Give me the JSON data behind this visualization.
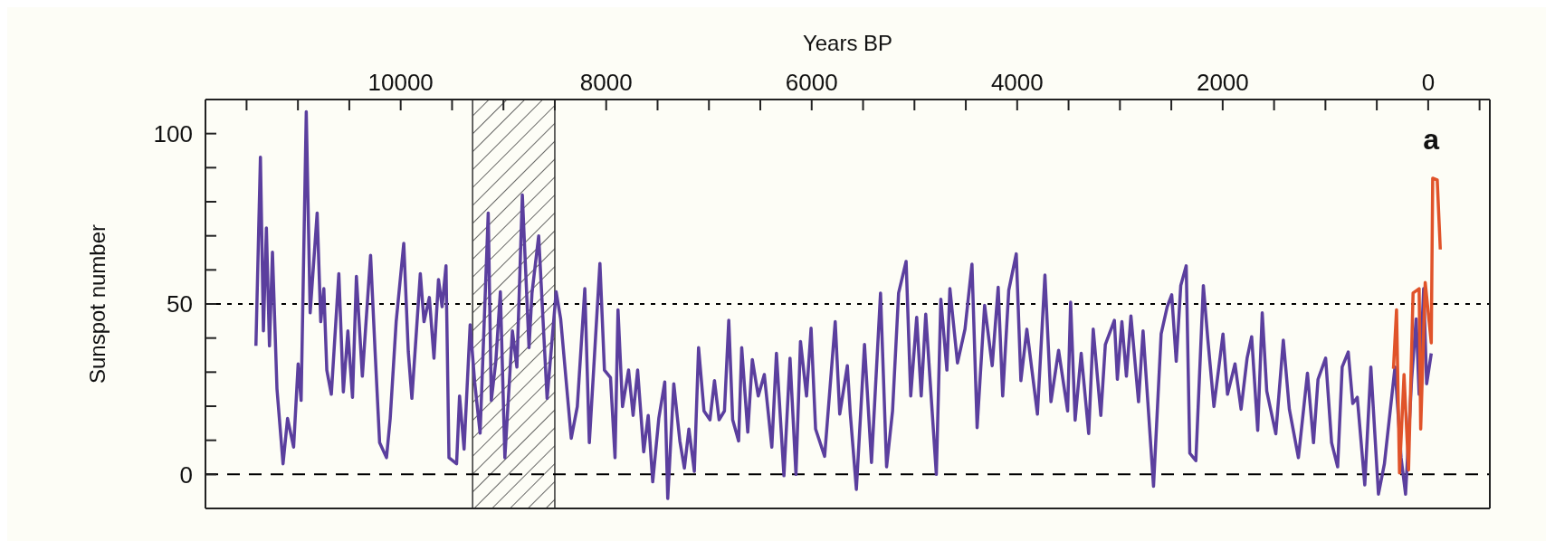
{
  "chart_data": {
    "type": "line",
    "xlabel": "Years BP",
    "ylabel": "Sunspot number",
    "annotations": [
      "a"
    ],
    "xlim": [
      11900,
      -600
    ],
    "ylim": [
      -10,
      110
    ],
    "xticks": [
      {
        "value": 11500,
        "label": null
      },
      {
        "value": 11000,
        "label": null
      },
      {
        "value": 10500,
        "label": null
      },
      10000,
      {
        "value": 9500,
        "label": null
      },
      {
        "value": 9000,
        "label": null
      },
      {
        "value": 8500,
        "label": null
      },
      8000,
      {
        "value": 7500,
        "label": null
      },
      {
        "value": 7000,
        "label": null
      },
      {
        "value": 6500,
        "label": null
      },
      6000,
      {
        "value": 5500,
        "label": null
      },
      {
        "value": 5000,
        "label": null
      },
      {
        "value": 4500,
        "label": null
      },
      4000,
      {
        "value": 3500,
        "label": null
      },
      {
        "value": 3000,
        "label": null
      },
      {
        "value": 2500,
        "label": null
      },
      2000,
      {
        "value": 1500,
        "label": null
      },
      {
        "value": 1000,
        "label": null
      },
      {
        "value": 500,
        "label": null
      },
      0,
      {
        "value": -500,
        "label": null
      }
    ],
    "yticks": [
      0,
      {
        "value": 10,
        "label": null
      },
      {
        "value": 20,
        "label": null
      },
      {
        "value": 30,
        "label": null
      },
      {
        "value": 40,
        "label": null
      },
      50,
      {
        "value": 60,
        "label": null
      },
      {
        "value": 70,
        "label": null
      },
      {
        "value": 80,
        "label": null
      },
      {
        "value": 90,
        "label": null
      },
      100
    ],
    "ref_lines": [
      {
        "axis": "y",
        "value": 50,
        "line_style": "dotted",
        "color": "#000000"
      },
      {
        "axis": "y",
        "value": 0,
        "line_style": "dashed",
        "color": "#000000"
      }
    ],
    "bands": [
      {
        "axis": "x",
        "from": 9300,
        "to": 8500,
        "color": "#333333"
      }
    ],
    "series": [
      {
        "color": "#5b3f9e",
        "x": [
          11409,
          11365,
          11336,
          11307,
          11277,
          11248,
          11204,
          11145,
          11101,
          11042,
          10998,
          10969,
          10919,
          10881,
          10813,
          10778,
          10748,
          10719,
          10675,
          10602,
          10558,
          10514,
          10469,
          10431,
          10373,
          10293,
          10249,
          10205,
          10138,
          10102,
          10044,
          9970,
          9926,
          9891,
          9809,
          9773,
          9721,
          9676,
          9632,
          9597,
          9559,
          9530,
          9456,
          9427,
          9383,
          9324,
          9280,
          9227,
          9148,
          9118,
          9074,
          9030,
          8986,
          8913,
          8869,
          8816,
          8751,
          8722,
          8657,
          8575,
          8487,
          8443,
          8340,
          8281,
          8208,
          8164,
          8061,
          8017,
          7958,
          7914,
          7885,
          7841,
          7782,
          7738,
          7694,
          7635,
          7591,
          7547,
          7488,
          7430,
          7401,
          7342,
          7283,
          7239,
          7195,
          7142,
          7101,
          7048,
          6990,
          6946,
          6901,
          6849,
          6807,
          6769,
          6711,
          6681,
          6622,
          6578,
          6520,
          6461,
          6388,
          6343,
          6270,
          6211,
          6153,
          6109,
          6050,
          6006,
          5962,
          5874,
          5771,
          5727,
          5653,
          5624,
          5565,
          5486,
          5418,
          5330,
          5271,
          5213,
          5154,
          5081,
          5036,
          4978,
          4934,
          4890,
          4787,
          4743,
          4684,
          4655,
          4581,
          4508,
          4440,
          4390,
          4317,
          4243,
          4185,
          4141,
          4082,
          4009,
          3964,
          3906,
          3803,
          3730,
          3671,
          3597,
          3509,
          3480,
          3436,
          3377,
          3304,
          3260,
          3186,
          3142,
          3054,
          3025,
          2981,
          2937,
          2893,
          2819,
          2775,
          2673,
          2599,
          2540,
          2496,
          2452,
          2408,
          2355,
          2320,
          2261,
          2188,
          2144,
          2085,
          1997,
          1953,
          1880,
          1821,
          1762,
          1718,
          1659,
          1615,
          1571,
          1483,
          1410,
          1351,
          1263,
          1175,
          1116,
          1072,
          998,
          940,
          881,
          837,
          778,
          734,
          690,
          617,
          558,
          484,
          426,
          323,
          264,
          220,
          161,
          117,
          88,
          44,
          15,
          -30
        ],
        "values": [
          37.7,
          93.1,
          42.1,
          72.3,
          37.7,
          65.2,
          25.1,
          3.1,
          16.4,
          8.0,
          32.4,
          21.7,
          106.4,
          47.4,
          76.7,
          44.8,
          54.5,
          30.6,
          23.5,
          58.9,
          24.2,
          42.1,
          22.6,
          58.1,
          28.8,
          64.3,
          36.0,
          9.3,
          4.9,
          16.4,
          44.8,
          67.8,
          36.0,
          22.3,
          58.9,
          44.8,
          51.9,
          34.1,
          57.2,
          49.2,
          61.2,
          4.9,
          3.1,
          23.0,
          7.4,
          43.9,
          27.1,
          12.1,
          76.7,
          21.7,
          33.2,
          53.6,
          4.9,
          42.1,
          31.5,
          82.0,
          37.2,
          53.2,
          70.0,
          22.3,
          53.6,
          45.6,
          10.6,
          19.9,
          54.5,
          9.3,
          61.9,
          30.6,
          28.4,
          4.9,
          48.3,
          19.9,
          30.6,
          17.3,
          30.6,
          6.6,
          17.3,
          -2.2,
          16.4,
          27.1,
          -7.1,
          26.6,
          9.8,
          1.8,
          13.3,
          0.9,
          37.2,
          18.6,
          16.0,
          27.5,
          16.0,
          18.6,
          45.2,
          16.0,
          9.8,
          37.2,
          12.4,
          33.7,
          23.0,
          29.3,
          8.0,
          35.5,
          -0.4,
          34.1,
          0.0,
          39.0,
          23.0,
          42.9,
          13.3,
          5.3,
          44.8,
          17.7,
          31.9,
          17.7,
          -4.4,
          38.1,
          3.5,
          53.2,
          2.2,
          18.6,
          53.2,
          62.5,
          23.0,
          46.1,
          23.0,
          47.0,
          0.0,
          51.4,
          30.6,
          54.5,
          32.7,
          42.6,
          61.7,
          13.7,
          49.6,
          31.9,
          54.9,
          23.0,
          54.0,
          64.7,
          27.5,
          42.6,
          17.7,
          58.5,
          21.3,
          36.4,
          18.6,
          50.5,
          15.9,
          35.5,
          12.0,
          42.6,
          17.3,
          38.1,
          45.2,
          27.9,
          44.8,
          28.8,
          46.5,
          21.3,
          42.1,
          -3.5,
          41.2,
          49.2,
          52.7,
          33.2,
          55.4,
          61.2,
          6.2,
          4.0,
          55.4,
          39.4,
          19.9,
          41.2,
          23.5,
          32.4,
          19.1,
          34.2,
          40.4,
          12.9,
          47.4,
          24.4,
          11.9,
          39.4,
          19.1,
          4.9,
          29.7,
          9.3,
          27.9,
          34.1,
          9.3,
          2.2,
          31.5,
          35.9,
          20.8,
          22.6,
          -3.1,
          31.5,
          -5.8,
          3.1,
          31.5,
          4.9,
          -5.8,
          27.9,
          45.6,
          23.5,
          54.5,
          26.6,
          35.5
        ]
      },
      {
        "color": "#e0532a",
        "x": [
          338,
          308,
          279,
          235,
          191,
          147,
          88,
          73,
          29,
          -30,
          -44,
          -88,
          -118
        ],
        "values": [
          31.0,
          48.3,
          0.4,
          29.3,
          1.3,
          53.2,
          54.5,
          13.3,
          56.3,
          38.6,
          86.9,
          86.4,
          66.0
        ]
      }
    ]
  }
}
